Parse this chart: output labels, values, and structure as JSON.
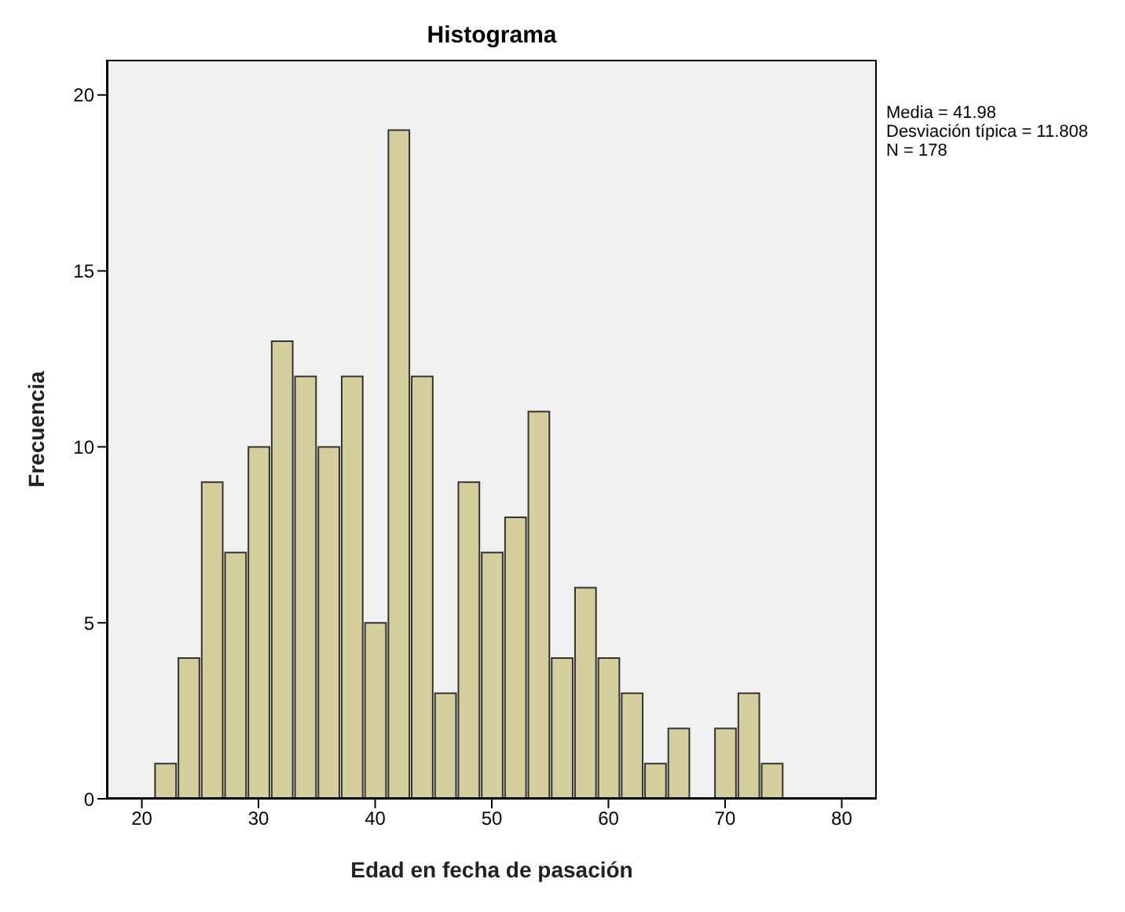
{
  "chart_data": {
    "type": "histogram",
    "title": "Histograma",
    "xlabel": "Edad en fecha de pasación",
    "ylabel": "Frecuencia",
    "bins": [
      21,
      23,
      25,
      27,
      29,
      31,
      33,
      35,
      37,
      39,
      41,
      43,
      45,
      47,
      49,
      51,
      53,
      55,
      57,
      59,
      61,
      63,
      65,
      67,
      69,
      71,
      73,
      75
    ],
    "values": [
      1,
      4,
      9,
      7,
      10,
      13,
      12,
      10,
      12,
      5,
      19,
      12,
      3,
      9,
      7,
      8,
      11,
      4,
      6,
      4,
      3,
      1,
      2,
      0,
      2,
      3,
      1
    ],
    "color": "#d4cf9c",
    "xlim": [
      17,
      83
    ],
    "xticks": [
      20,
      30,
      40,
      50,
      60,
      70,
      80
    ],
    "ylim": [
      0,
      21
    ],
    "yticks": [
      0,
      5,
      10,
      15,
      20
    ],
    "annotations": [
      "Media = 41.98",
      "Desviación típica = 11.808",
      "N = 178"
    ],
    "grid": false,
    "legend": false
  }
}
